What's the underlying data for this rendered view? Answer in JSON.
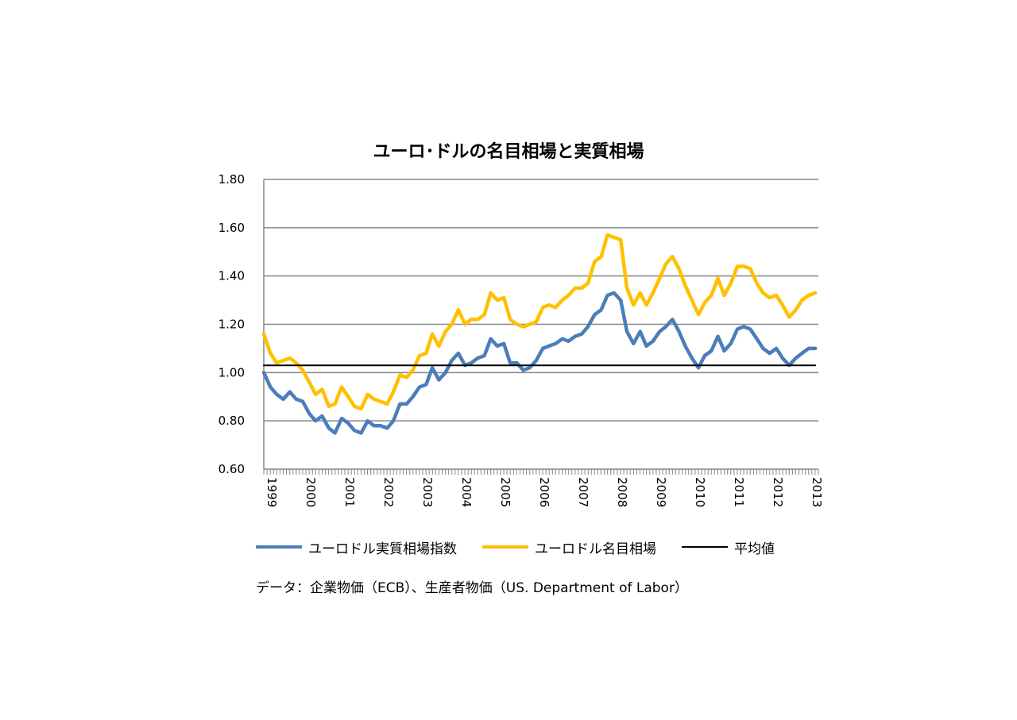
{
  "chart_data": {
    "type": "line",
    "title": "ユーロ･ドルの名目相場と実質相場",
    "xlabel": "",
    "ylabel": "",
    "ylim": [
      0.6,
      1.8
    ],
    "yticks": [
      "0.60",
      "0.80",
      "1.00",
      "1.20",
      "1.40",
      "1.60",
      "1.80"
    ],
    "xlim": [
      1999.0,
      2013.25
    ],
    "x_tick_labels": [
      "1999",
      "2000",
      "2001",
      "2002",
      "2003",
      "2004",
      "2005",
      "2006",
      "2007",
      "2008",
      "2009",
      "2010",
      "2011",
      "2012",
      "2013"
    ],
    "grid": true,
    "legend_position": "bottom",
    "series": [
      {
        "name": "ユーロドル実質相場指数",
        "color": "#4A7EBB",
        "x": [
          1999.0,
          1999.17,
          1999.33,
          1999.5,
          1999.67,
          1999.83,
          2000.0,
          2000.17,
          2000.33,
          2000.5,
          2000.67,
          2000.83,
          2001.0,
          2001.17,
          2001.33,
          2001.5,
          2001.67,
          2001.83,
          2002.0,
          2002.17,
          2002.33,
          2002.5,
          2002.67,
          2002.83,
          2003.0,
          2003.17,
          2003.33,
          2003.5,
          2003.67,
          2003.83,
          2004.0,
          2004.17,
          2004.33,
          2004.5,
          2004.67,
          2004.83,
          2005.0,
          2005.17,
          2005.33,
          2005.5,
          2005.67,
          2005.83,
          2006.0,
          2006.17,
          2006.33,
          2006.5,
          2006.67,
          2006.83,
          2007.0,
          2007.17,
          2007.33,
          2007.5,
          2007.67,
          2007.83,
          2008.0,
          2008.17,
          2008.33,
          2008.5,
          2008.67,
          2008.83,
          2009.0,
          2009.17,
          2009.33,
          2009.5,
          2009.67,
          2009.83,
          2010.0,
          2010.17,
          2010.33,
          2010.5,
          2010.67,
          2010.83,
          2011.0,
          2011.17,
          2011.33,
          2011.5,
          2011.67,
          2011.83,
          2012.0,
          2012.17,
          2012.33,
          2012.5,
          2012.67,
          2012.83,
          2013.0,
          2013.17
        ],
        "values": [
          1.0,
          0.94,
          0.91,
          0.89,
          0.92,
          0.89,
          0.88,
          0.83,
          0.8,
          0.82,
          0.77,
          0.75,
          0.81,
          0.79,
          0.76,
          0.75,
          0.8,
          0.78,
          0.78,
          0.77,
          0.8,
          0.87,
          0.87,
          0.9,
          0.94,
          0.95,
          1.02,
          0.97,
          1.0,
          1.05,
          1.08,
          1.03,
          1.04,
          1.06,
          1.07,
          1.14,
          1.11,
          1.12,
          1.04,
          1.04,
          1.01,
          1.02,
          1.05,
          1.1,
          1.11,
          1.12,
          1.14,
          1.13,
          1.15,
          1.16,
          1.19,
          1.24,
          1.26,
          1.32,
          1.33,
          1.3,
          1.17,
          1.12,
          1.17,
          1.11,
          1.13,
          1.17,
          1.19,
          1.22,
          1.17,
          1.11,
          1.06,
          1.02,
          1.07,
          1.09,
          1.15,
          1.09,
          1.12,
          1.18,
          1.19,
          1.18,
          1.14,
          1.1,
          1.08,
          1.1,
          1.06,
          1.03,
          1.06,
          1.08,
          1.1,
          1.1
        ]
      },
      {
        "name": "ユーロドル名目相場",
        "color": "#FFC000",
        "x": [
          1999.0,
          1999.17,
          1999.33,
          1999.5,
          1999.67,
          1999.83,
          2000.0,
          2000.17,
          2000.33,
          2000.5,
          2000.67,
          2000.83,
          2001.0,
          2001.17,
          2001.33,
          2001.5,
          2001.67,
          2001.83,
          2002.0,
          2002.17,
          2002.33,
          2002.5,
          2002.67,
          2002.83,
          2003.0,
          2003.17,
          2003.33,
          2003.5,
          2003.67,
          2003.83,
          2004.0,
          2004.17,
          2004.33,
          2004.5,
          2004.67,
          2004.83,
          2005.0,
          2005.17,
          2005.33,
          2005.5,
          2005.67,
          2005.83,
          2006.0,
          2006.17,
          2006.33,
          2006.5,
          2006.67,
          2006.83,
          2007.0,
          2007.17,
          2007.33,
          2007.5,
          2007.67,
          2007.83,
          2008.0,
          2008.17,
          2008.33,
          2008.5,
          2008.67,
          2008.83,
          2009.0,
          2009.17,
          2009.33,
          2009.5,
          2009.67,
          2009.83,
          2010.0,
          2010.17,
          2010.33,
          2010.5,
          2010.67,
          2010.83,
          2011.0,
          2011.17,
          2011.33,
          2011.5,
          2011.67,
          2011.83,
          2012.0,
          2012.17,
          2012.33,
          2012.5,
          2012.67,
          2012.83,
          2013.0,
          2013.17
        ],
        "values": [
          1.16,
          1.08,
          1.04,
          1.05,
          1.06,
          1.04,
          1.01,
          0.96,
          0.91,
          0.93,
          0.86,
          0.87,
          0.94,
          0.9,
          0.86,
          0.85,
          0.91,
          0.89,
          0.88,
          0.87,
          0.92,
          0.99,
          0.98,
          1.01,
          1.07,
          1.08,
          1.16,
          1.11,
          1.17,
          1.2,
          1.26,
          1.2,
          1.22,
          1.22,
          1.24,
          1.33,
          1.3,
          1.31,
          1.22,
          1.2,
          1.19,
          1.2,
          1.21,
          1.27,
          1.28,
          1.27,
          1.3,
          1.32,
          1.35,
          1.35,
          1.37,
          1.46,
          1.48,
          1.57,
          1.56,
          1.55,
          1.35,
          1.28,
          1.33,
          1.28,
          1.33,
          1.39,
          1.45,
          1.48,
          1.43,
          1.36,
          1.3,
          1.24,
          1.29,
          1.32,
          1.39,
          1.32,
          1.37,
          1.44,
          1.44,
          1.43,
          1.37,
          1.33,
          1.31,
          1.32,
          1.28,
          1.23,
          1.26,
          1.3,
          1.32,
          1.33
        ]
      },
      {
        "name": "平均値",
        "color": "#000000",
        "x": [
          1999.0,
          2013.17
        ],
        "values": [
          1.03,
          1.03
        ]
      }
    ]
  },
  "source_note": "データ：企業物価（ECB）、生産者物価（US.  Department of Labor）"
}
